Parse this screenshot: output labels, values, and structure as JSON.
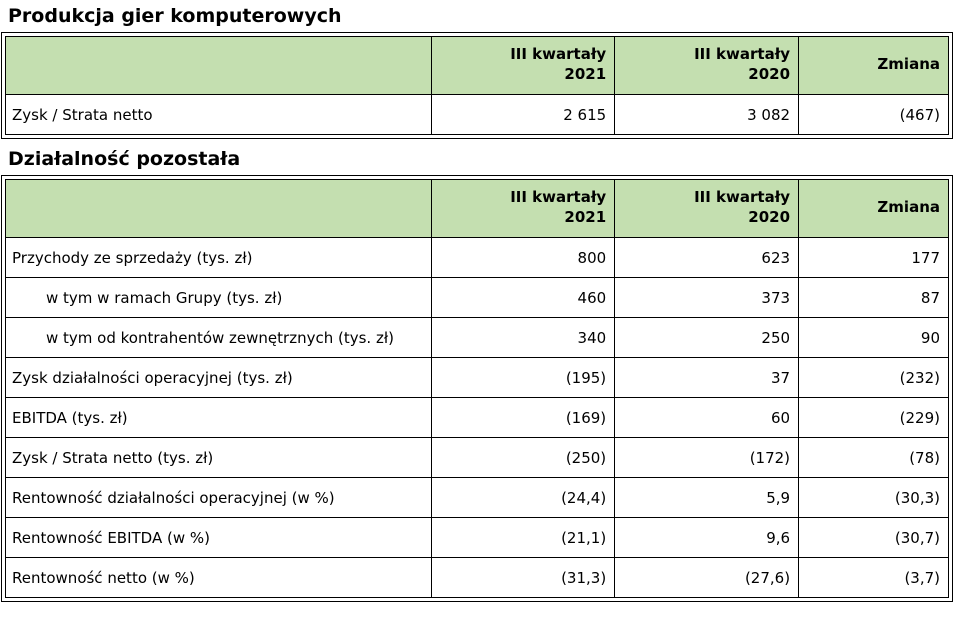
{
  "colors": {
    "header_bg": "#c4dfb0",
    "border": "#000000",
    "text": "#000000"
  },
  "sections": [
    {
      "title": "Produkcja gier komputerowych",
      "columns": [
        "",
        "III kwartały\n2021",
        "III kwartały\n2020",
        "Zmiana"
      ],
      "rows": [
        {
          "label": "Zysk / Strata netto",
          "values": [
            "2 615",
            "3 082",
            "(467)"
          ]
        }
      ]
    },
    {
      "title": "Działalność pozostała",
      "columns": [
        "",
        "III kwartały\n2021",
        "III kwartały\n2020",
        "Zmiana"
      ],
      "rows": [
        {
          "label": "Przychody ze sprzedaży (tys. zł)",
          "values": [
            "800",
            "623",
            "177"
          ]
        },
        {
          "label": "w tym w ramach Grupy (tys. zł)",
          "values": [
            "460",
            "373",
            "87"
          ]
        },
        {
          "label": "w tym od kontrahentów zewnętrznych (tys. zł)",
          "values": [
            "340",
            "250",
            "90"
          ]
        },
        {
          "label": "Zysk działalności operacyjnej (tys. zł)",
          "values": [
            "(195)",
            "37",
            "(232)"
          ]
        },
        {
          "label": "EBITDA (tys. zł)",
          "values": [
            "(169)",
            "60",
            "(229)"
          ]
        },
        {
          "label": "Zysk / Strata netto (tys. zł)",
          "values": [
            "(250)",
            "(172)",
            "(78)"
          ]
        },
        {
          "label": "Rentowność działalności operacyjnej (w %)",
          "values": [
            "(24,4)",
            "5,9",
            "(30,3)"
          ]
        },
        {
          "label": "Rentowność EBITDA (w %)",
          "values": [
            "(21,1)",
            "9,6",
            "(30,7)"
          ]
        },
        {
          "label": "Rentowność netto (w %)",
          "values": [
            "(31,3)",
            "(27,6)",
            "(3,7)"
          ]
        }
      ]
    }
  ]
}
